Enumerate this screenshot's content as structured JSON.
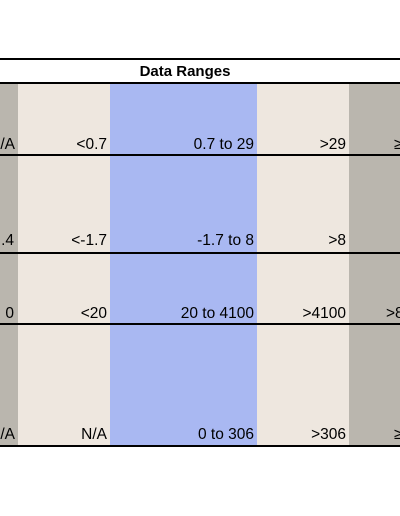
{
  "title": "Data Ranges",
  "colors": {
    "gray": "#bab6ae",
    "beige": "#eee7df",
    "blue": "#a9b8f2",
    "border": "#000000"
  },
  "rows": [
    {
      "col0": "/A",
      "col1": "<0.7",
      "col2": "0.7 to 29",
      "col3": ">29",
      "col4": "≥"
    },
    {
      "col0": ".4",
      "col1": "<-1.7",
      "col2": "-1.7 to 8",
      "col3": ">8",
      "col4": ""
    },
    {
      "col0": "0",
      "col1": "<20",
      "col2": "20 to 4100",
      "col3": ">4100",
      "col4": ">8"
    },
    {
      "col0": "/A",
      "col1": "N/A",
      "col2": "0 to 306",
      "col3": ">306",
      "col4": "≥"
    }
  ]
}
